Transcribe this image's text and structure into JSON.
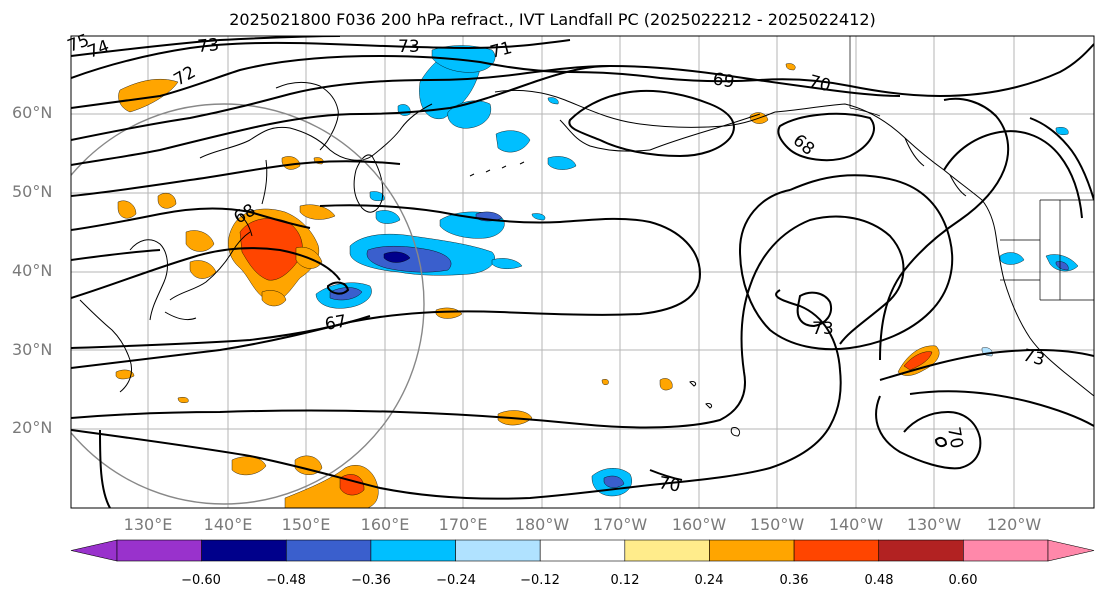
{
  "title": "2025021800 F036 200 hPa refract., IVT Landfall PC (2025022212 - 2025022412)",
  "lat_labels": [
    "60°N",
    "50°N",
    "40°N",
    "30°N",
    "20°N"
  ],
  "lon_labels": [
    "130°E",
    "140°E",
    "150°E",
    "160°E",
    "170°E",
    "180°W",
    "170°W",
    "160°W",
    "150°W",
    "140°W",
    "130°W",
    "120°W"
  ],
  "contour_labels": [
    "75",
    "74",
    "73",
    "73",
    "71",
    "72",
    "69",
    "70",
    "68",
    "68",
    "67",
    "73",
    "73",
    "70",
    "70"
  ],
  "colorbar": {
    "ticks": [
      "−0.60",
      "−0.48",
      "−0.36",
      "−0.24",
      "−0.12",
      "0.12",
      "0.24",
      "0.36",
      "0.48",
      "0.60"
    ],
    "colors": [
      "#9932cc",
      "#00008b",
      "#3a5fcd",
      "#00bfff",
      "#b0e2ff",
      "#ffffff",
      "#ffec8b",
      "#ffa500",
      "#ff4500",
      "#b22222",
      "#ff88aa",
      "#ff88aa"
    ]
  }
}
